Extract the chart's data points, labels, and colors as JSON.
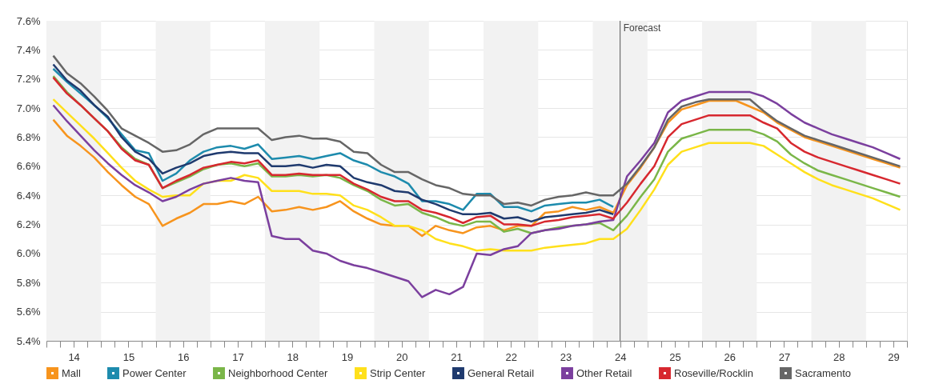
{
  "chart_data": {
    "type": "line",
    "x": [
      13.625,
      13.875,
      14.125,
      14.375,
      14.625,
      14.875,
      15.125,
      15.375,
      15.625,
      15.875,
      16.125,
      16.375,
      16.625,
      16.875,
      17.125,
      17.375,
      17.625,
      17.875,
      18.125,
      18.375,
      18.625,
      18.875,
      19.125,
      19.375,
      19.625,
      19.875,
      20.125,
      20.375,
      20.625,
      20.875,
      21.125,
      21.375,
      21.625,
      21.875,
      22.125,
      22.375,
      22.625,
      22.875,
      23.125,
      23.375,
      23.625,
      23.875,
      24.125,
      24.375,
      24.625,
      24.875,
      25.125,
      25.375,
      25.625,
      25.875,
      26.125,
      26.375,
      26.625,
      26.875,
      27.125,
      27.375,
      27.625,
      27.875,
      28.125,
      28.375,
      28.625,
      28.875,
      29.125
    ],
    "series": [
      {
        "name": "Mall",
        "color": "#f7941d",
        "values": [
          6.92,
          6.81,
          6.74,
          6.66,
          6.56,
          6.47,
          6.39,
          6.34,
          6.19,
          6.24,
          6.28,
          6.34,
          6.34,
          6.36,
          6.34,
          6.39,
          6.29,
          6.3,
          6.32,
          6.3,
          6.32,
          6.36,
          6.29,
          6.24,
          6.2,
          6.19,
          6.19,
          6.12,
          6.19,
          6.16,
          6.14,
          6.18,
          6.19,
          6.16,
          6.19,
          6.19,
          6.28,
          6.29,
          6.32,
          6.3,
          6.32,
          6.28,
          6.47,
          6.59,
          6.73,
          6.9,
          6.99,
          7.02,
          7.05,
          7.05,
          7.05,
          7.01,
          6.97,
          6.9,
          6.85,
          6.8,
          6.77,
          6.74,
          6.71,
          6.68,
          6.65,
          6.62,
          6.59
        ]
      },
      {
        "name": "Power Center",
        "color": "#1d8bad",
        "values": [
          7.27,
          7.18,
          7.1,
          7.02,
          6.93,
          6.82,
          6.71,
          6.69,
          6.5,
          6.55,
          6.64,
          6.7,
          6.73,
          6.74,
          6.72,
          6.75,
          6.65,
          6.66,
          6.67,
          6.65,
          6.67,
          6.69,
          6.64,
          6.61,
          6.56,
          6.53,
          6.48,
          6.36,
          6.36,
          6.34,
          6.3,
          6.41,
          6.41,
          6.32,
          6.32,
          6.29,
          6.33,
          6.34,
          6.35,
          6.35,
          6.37,
          6.32,
          null,
          null,
          null,
          null,
          null,
          null,
          null,
          null,
          null,
          null,
          null,
          null,
          null,
          null,
          null,
          null,
          null,
          null,
          null,
          null,
          null
        ]
      },
      {
        "name": "Neighborhood Center",
        "color": "#7ab648",
        "values": [
          7.22,
          7.11,
          7.02,
          6.93,
          6.84,
          6.73,
          6.65,
          6.61,
          6.45,
          6.49,
          6.53,
          6.58,
          6.61,
          6.62,
          6.6,
          6.62,
          6.53,
          6.53,
          6.54,
          6.53,
          6.54,
          6.52,
          6.47,
          6.43,
          6.37,
          6.33,
          6.34,
          6.28,
          6.25,
          6.21,
          6.19,
          6.22,
          6.22,
          6.15,
          6.17,
          6.14,
          6.16,
          6.18,
          6.19,
          6.2,
          6.21,
          6.16,
          6.26,
          6.39,
          6.51,
          6.7,
          6.79,
          6.82,
          6.85,
          6.85,
          6.85,
          6.85,
          6.82,
          6.77,
          6.68,
          6.62,
          6.57,
          6.54,
          6.51,
          6.48,
          6.45,
          6.42,
          6.39
        ]
      },
      {
        "name": "Strip Center",
        "color": "#ffe01b",
        "values": [
          7.06,
          6.97,
          6.88,
          6.79,
          6.69,
          6.59,
          6.5,
          6.44,
          6.39,
          6.4,
          6.4,
          6.48,
          6.5,
          6.5,
          6.54,
          6.52,
          6.43,
          6.43,
          6.43,
          6.41,
          6.41,
          6.4,
          6.33,
          6.3,
          6.25,
          6.19,
          6.19,
          6.16,
          6.1,
          6.07,
          6.05,
          6.02,
          6.03,
          6.02,
          6.02,
          6.02,
          6.04,
          6.05,
          6.06,
          6.07,
          6.1,
          6.1,
          6.17,
          6.3,
          6.44,
          6.61,
          6.7,
          6.73,
          6.76,
          6.76,
          6.76,
          6.76,
          6.74,
          6.68,
          6.62,
          6.56,
          6.51,
          6.47,
          6.44,
          6.41,
          6.38,
          6.34,
          6.3
        ]
      },
      {
        "name": "General Retail",
        "color": "#1f3a6e",
        "values": [
          7.3,
          7.19,
          7.12,
          7.02,
          6.94,
          6.8,
          6.7,
          6.65,
          6.55,
          6.59,
          6.62,
          6.67,
          6.69,
          6.7,
          6.69,
          6.69,
          6.6,
          6.6,
          6.61,
          6.59,
          6.61,
          6.6,
          6.52,
          6.49,
          6.47,
          6.43,
          6.42,
          6.37,
          6.34,
          6.3,
          6.27,
          6.27,
          6.28,
          6.24,
          6.25,
          6.22,
          6.25,
          6.26,
          6.27,
          6.28,
          6.3,
          6.27,
          null,
          null,
          null,
          null,
          null,
          null,
          null,
          null,
          null,
          null,
          null,
          null,
          null,
          null,
          null,
          null,
          null,
          null,
          null,
          null,
          null
        ]
      },
      {
        "name": "Other Retail",
        "color": "#7b3f9e",
        "values": [
          7.02,
          6.91,
          6.81,
          6.71,
          6.62,
          6.54,
          6.47,
          6.42,
          6.36,
          6.39,
          6.44,
          6.48,
          6.5,
          6.52,
          6.5,
          6.49,
          6.12,
          6.1,
          6.1,
          6.02,
          6.0,
          5.95,
          5.92,
          5.9,
          5.87,
          5.84,
          5.81,
          5.7,
          5.75,
          5.72,
          5.77,
          6.0,
          5.99,
          6.03,
          6.05,
          6.14,
          6.16,
          6.17,
          6.19,
          6.2,
          6.22,
          6.23,
          6.53,
          6.64,
          6.76,
          6.97,
          7.05,
          7.08,
          7.11,
          7.11,
          7.11,
          7.11,
          7.08,
          7.03,
          6.96,
          6.9,
          6.86,
          6.82,
          6.79,
          6.76,
          6.73,
          6.69,
          6.65
        ]
      },
      {
        "name": "Roseville/Rocklin",
        "color": "#d7282f",
        "values": [
          7.21,
          7.1,
          7.02,
          6.93,
          6.84,
          6.72,
          6.64,
          6.61,
          6.45,
          6.5,
          6.54,
          6.59,
          6.61,
          6.63,
          6.62,
          6.64,
          6.54,
          6.54,
          6.55,
          6.54,
          6.54,
          6.54,
          6.48,
          6.44,
          6.39,
          6.36,
          6.36,
          6.3,
          6.28,
          6.25,
          6.21,
          6.25,
          6.26,
          6.2,
          6.2,
          6.19,
          6.22,
          6.23,
          6.25,
          6.26,
          6.27,
          6.24,
          6.35,
          6.48,
          6.6,
          6.8,
          6.89,
          6.92,
          6.95,
          6.95,
          6.95,
          6.95,
          6.9,
          6.86,
          6.76,
          6.7,
          6.66,
          6.63,
          6.6,
          6.57,
          6.54,
          6.51,
          6.48
        ]
      },
      {
        "name": "Sacramento",
        "color": "#666666",
        "values": [
          7.36,
          7.24,
          7.17,
          7.08,
          6.98,
          6.86,
          6.81,
          6.76,
          6.7,
          6.71,
          6.75,
          6.82,
          6.86,
          6.86,
          6.86,
          6.86,
          6.78,
          6.8,
          6.81,
          6.79,
          6.79,
          6.77,
          6.7,
          6.69,
          6.61,
          6.56,
          6.56,
          6.51,
          6.47,
          6.45,
          6.41,
          6.4,
          6.4,
          6.34,
          6.35,
          6.33,
          6.37,
          6.39,
          6.4,
          6.42,
          6.4,
          6.4,
          6.48,
          6.6,
          6.73,
          6.92,
          7.01,
          7.04,
          7.06,
          7.06,
          7.06,
          7.06,
          6.98,
          6.91,
          6.86,
          6.81,
          6.78,
          6.75,
          6.72,
          6.69,
          6.66,
          6.63,
          6.6
        ]
      }
    ],
    "xlim": [
      13.5,
      29.25
    ],
    "xticks": [
      {
        "value": 13.5,
        "label": null
      },
      {
        "value": 13.75,
        "label": null
      },
      14,
      {
        "value": 14.25,
        "label": null
      },
      {
        "value": 14.5,
        "label": null
      },
      {
        "value": 14.75,
        "label": null
      },
      15,
      {
        "value": 15.25,
        "label": null
      },
      {
        "value": 15.5,
        "label": null
      },
      {
        "value": 15.75,
        "label": null
      },
      16,
      {
        "value": 16.25,
        "label": null
      },
      {
        "value": 16.5,
        "label": null
      },
      {
        "value": 16.75,
        "label": null
      },
      17,
      {
        "value": 17.25,
        "label": null
      },
      {
        "value": 17.5,
        "label": null
      },
      {
        "value": 17.75,
        "label": null
      },
      18,
      {
        "value": 18.25,
        "label": null
      },
      {
        "value": 18.5,
        "label": null
      },
      {
        "value": 18.75,
        "label": null
      },
      19,
      {
        "value": 19.25,
        "label": null
      },
      {
        "value": 19.5,
        "label": null
      },
      {
        "value": 19.75,
        "label": null
      },
      20,
      {
        "value": 20.25,
        "label": null
      },
      {
        "value": 20.5,
        "label": null
      },
      {
        "value": 20.75,
        "label": null
      },
      21,
      {
        "value": 21.25,
        "label": null
      },
      {
        "value": 21.5,
        "label": null
      },
      {
        "value": 21.75,
        "label": null
      },
      22,
      {
        "value": 22.25,
        "label": null
      },
      {
        "value": 22.5,
        "label": null
      },
      {
        "value": 22.75,
        "label": null
      },
      23,
      {
        "value": 23.25,
        "label": null
      },
      {
        "value": 23.5,
        "label": null
      },
      {
        "value": 23.75,
        "label": null
      },
      24,
      {
        "value": 24.25,
        "label": null
      },
      {
        "value": 24.5,
        "label": null
      },
      {
        "value": 24.75,
        "label": null
      },
      25,
      {
        "value": 25.25,
        "label": null
      },
      {
        "value": 25.5,
        "label": null
      },
      {
        "value": 25.75,
        "label": null
      },
      26,
      {
        "value": 26.25,
        "label": null
      },
      {
        "value": 26.5,
        "label": null
      },
      {
        "value": 26.75,
        "label": null
      },
      27,
      {
        "value": 27.25,
        "label": null
      },
      {
        "value": 27.5,
        "label": null
      },
      {
        "value": 27.75,
        "label": null
      },
      28,
      {
        "value": 28.25,
        "label": null
      },
      {
        "value": 28.5,
        "label": null
      },
      {
        "value": 28.75,
        "label": null
      },
      29,
      {
        "value": 29.25,
        "label": null
      }
    ],
    "ylim": [
      5.4,
      7.6
    ],
    "yticks": [
      {
        "value": 5.4,
        "label": "5.4%"
      },
      {
        "value": 5.6,
        "label": "5.6%"
      },
      {
        "value": 5.8,
        "label": "5.8%"
      },
      {
        "value": 6.0,
        "label": "6.0%"
      },
      {
        "value": 6.2,
        "label": "6.2%"
      },
      {
        "value": 6.4,
        "label": "6.4%"
      },
      {
        "value": 6.6,
        "label": "6.6%"
      },
      {
        "value": 6.8,
        "label": "6.8%"
      },
      {
        "value": 7.0,
        "label": "7.0%"
      },
      {
        "value": 7.2,
        "label": "7.2%"
      },
      {
        "value": 7.4,
        "label": "7.4%"
      },
      {
        "value": 7.6,
        "label": "7.6%"
      }
    ],
    "bands": [
      {
        "axis": "x",
        "from": 13.5,
        "to": 14.5,
        "color": "#f2f2f2"
      },
      {
        "axis": "x",
        "from": 15.5,
        "to": 16.5,
        "color": "#f2f2f2"
      },
      {
        "axis": "x",
        "from": 17.5,
        "to": 18.5,
        "color": "#f2f2f2"
      },
      {
        "axis": "x",
        "from": 19.5,
        "to": 20.5,
        "color": "#f2f2f2"
      },
      {
        "axis": "x",
        "from": 21.5,
        "to": 22.5,
        "color": "#f2f2f2"
      },
      {
        "axis": "x",
        "from": 23.5,
        "to": 24.5,
        "color": "#f2f2f2"
      },
      {
        "axis": "x",
        "from": 25.5,
        "to": 26.5,
        "color": "#f2f2f2"
      },
      {
        "axis": "x",
        "from": 27.5,
        "to": 28.5,
        "color": "#f2f2f2"
      }
    ],
    "ref_lines": [
      {
        "axis": "x",
        "value": 24,
        "label": "Forecast",
        "color": "#555555"
      }
    ],
    "grid": "y",
    "legend": "bottom"
  }
}
